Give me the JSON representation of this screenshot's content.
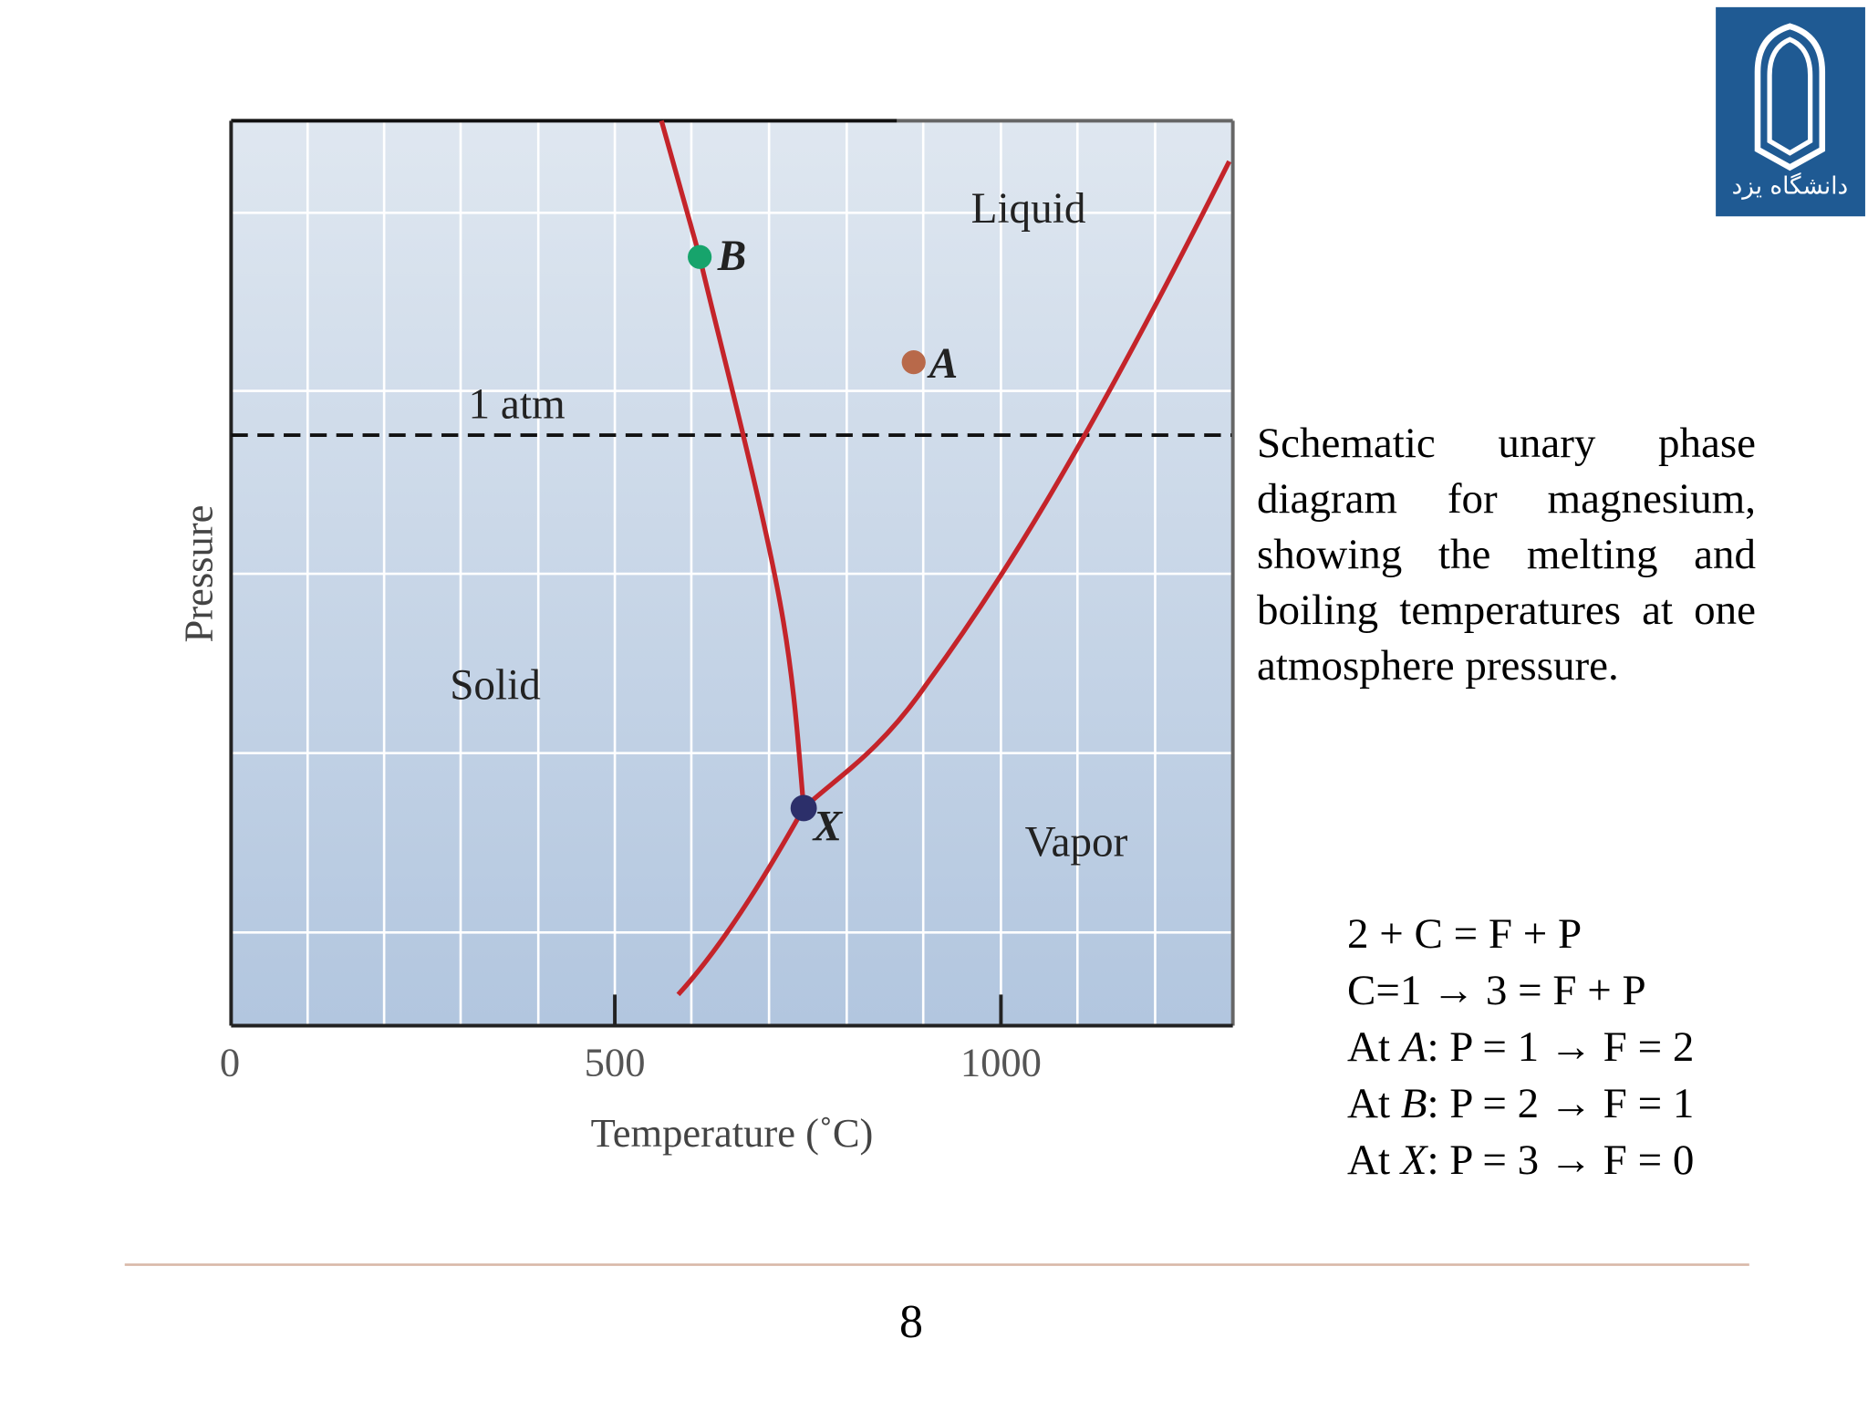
{
  "logo": {
    "text": "دانشگاه یزد"
  },
  "figure": {
    "y_label": "Pressure",
    "x_label": "Temperature (˚C)",
    "x_ticks": [
      "0",
      "500",
      "1000"
    ],
    "regions": {
      "liquid": "Liquid",
      "solid": "Solid",
      "vapor": "Vapor"
    },
    "line_label": "1 atm",
    "points": {
      "a": "A",
      "b": "B",
      "x": "X"
    }
  },
  "caption": "Schematic unary phase diagram for magnesium, showing the melting and boiling temperatures at one atmosphere pressure.",
  "equations": [
    {
      "text": "2 + C = F + P"
    },
    {
      "text": "C=1 → 3 = F + P"
    },
    {
      "prefix": "At ",
      "point": "A",
      "text": ": P = 1 → F = 2"
    },
    {
      "prefix": "At ",
      "point": "B",
      "text": ": P = 2 → F = 1"
    },
    {
      "prefix": "At ",
      "point": "X",
      "text": ": P = 3 → F = 0"
    }
  ],
  "page_number": "8"
}
